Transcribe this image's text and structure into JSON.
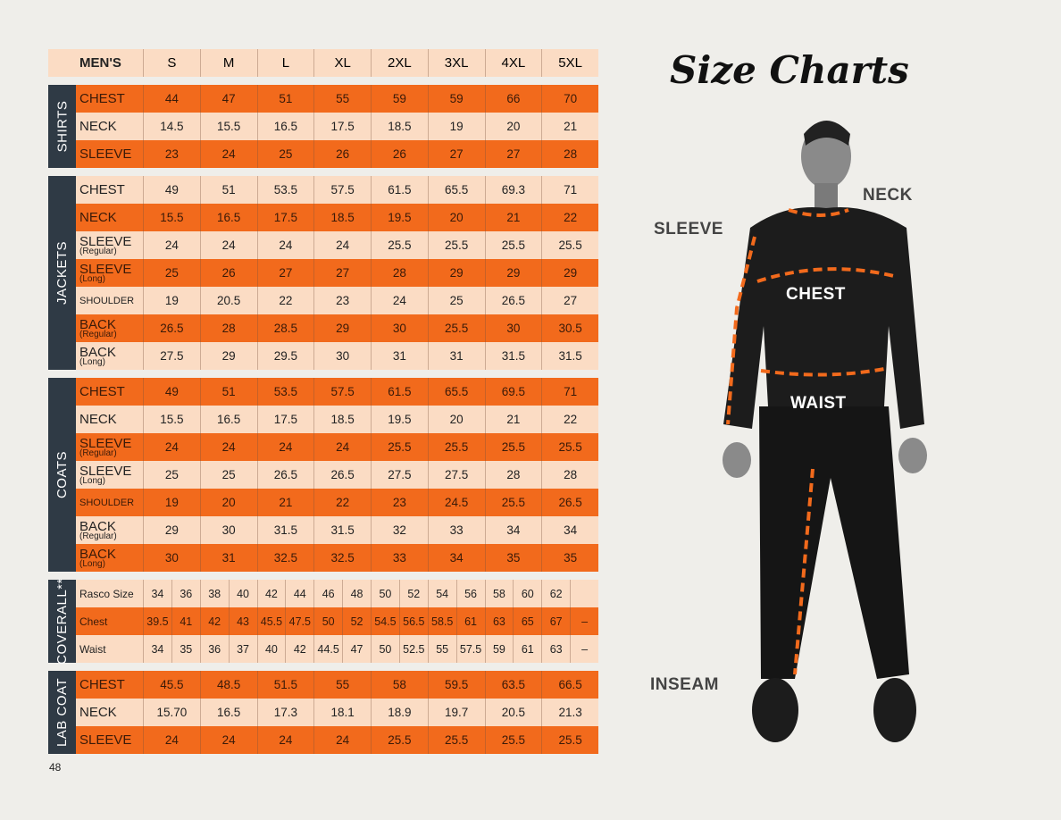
{
  "title": "Size Charts",
  "page_number": "48",
  "colors": {
    "orange": "#f26a1c",
    "peach": "#fbdcc4",
    "section_tag": "#2f3a45"
  },
  "header": {
    "label": "MEN'S",
    "sizes": [
      "S",
      "M",
      "L",
      "XL",
      "2XL",
      "3XL",
      "4XL",
      "5XL"
    ]
  },
  "sections": [
    {
      "name": "SHIRTS",
      "rows": [
        {
          "label": "CHEST",
          "color": "orange",
          "values": [
            "44",
            "47",
            "51",
            "55",
            "59",
            "59",
            "66",
            "70"
          ]
        },
        {
          "label": "NECK",
          "color": "peach",
          "values": [
            "14.5",
            "15.5",
            "16.5",
            "17.5",
            "18.5",
            "19",
            "20",
            "21"
          ]
        },
        {
          "label": "SLEEVE",
          "color": "orange",
          "values": [
            "23",
            "24",
            "25",
            "26",
            "26",
            "27",
            "27",
            "28"
          ]
        }
      ]
    },
    {
      "name": "JACKETS",
      "rows": [
        {
          "label": "CHEST",
          "color": "peach",
          "values": [
            "49",
            "51",
            "53.5",
            "57.5",
            "61.5",
            "65.5",
            "69.3",
            "71"
          ]
        },
        {
          "label": "NECK",
          "color": "orange",
          "values": [
            "15.5",
            "16.5",
            "17.5",
            "18.5",
            "19.5",
            "20",
            "21",
            "22"
          ]
        },
        {
          "label": "SLEEVE",
          "sub": "(Regular)",
          "color": "peach",
          "values": [
            "24",
            "24",
            "24",
            "24",
            "25.5",
            "25.5",
            "25.5",
            "25.5"
          ]
        },
        {
          "label": "SLEEVE",
          "sub": "(Long)",
          "color": "orange",
          "values": [
            "25",
            "26",
            "27",
            "27",
            "28",
            "29",
            "29",
            "29"
          ]
        },
        {
          "label": "SHOULDER",
          "small": true,
          "color": "peach",
          "values": [
            "19",
            "20.5",
            "22",
            "23",
            "24",
            "25",
            "26.5",
            "27"
          ]
        },
        {
          "label": "BACK",
          "sub": "(Regular)",
          "color": "orange",
          "values": [
            "26.5",
            "28",
            "28.5",
            "29",
            "30",
            "25.5",
            "30",
            "30.5"
          ]
        },
        {
          "label": "BACK",
          "sub": "(Long)",
          "color": "peach",
          "values": [
            "27.5",
            "29",
            "29.5",
            "30",
            "31",
            "31",
            "31.5",
            "31.5"
          ]
        }
      ]
    },
    {
      "name": "COATS",
      "rows": [
        {
          "label": "CHEST",
          "color": "orange",
          "values": [
            "49",
            "51",
            "53.5",
            "57.5",
            "61.5",
            "65.5",
            "69.5",
            "71"
          ]
        },
        {
          "label": "NECK",
          "color": "peach",
          "values": [
            "15.5",
            "16.5",
            "17.5",
            "18.5",
            "19.5",
            "20",
            "21",
            "22"
          ]
        },
        {
          "label": "SLEEVE",
          "sub": "(Regular)",
          "color": "orange",
          "values": [
            "24",
            "24",
            "24",
            "24",
            "25.5",
            "25.5",
            "25.5",
            "25.5"
          ]
        },
        {
          "label": "SLEEVE",
          "sub": "(Long)",
          "color": "peach",
          "values": [
            "25",
            "25",
            "26.5",
            "26.5",
            "27.5",
            "27.5",
            "28",
            "28"
          ]
        },
        {
          "label": "SHOULDER",
          "small": true,
          "color": "orange",
          "values": [
            "19",
            "20",
            "21",
            "22",
            "23",
            "24.5",
            "25.5",
            "26.5"
          ]
        },
        {
          "label": "BACK",
          "sub": "(Regular)",
          "color": "peach",
          "values": [
            "29",
            "30",
            "31.5",
            "31.5",
            "32",
            "33",
            "34",
            "34"
          ]
        },
        {
          "label": "BACK",
          "sub": "(Long)",
          "color": "orange",
          "values": [
            "30",
            "31",
            "32.5",
            "32.5",
            "33",
            "34",
            "35",
            "35"
          ]
        }
      ]
    },
    {
      "name": "COVERALL**",
      "coverall": true,
      "rows": [
        {
          "label": "Rasco Size",
          "color": "peach",
          "values": [
            "34",
            "36",
            "38",
            "40",
            "42",
            "44",
            "46",
            "48",
            "50",
            "52",
            "54",
            "56",
            "58",
            "60",
            "62",
            ""
          ]
        },
        {
          "label": "Chest",
          "color": "orange",
          "values": [
            "39.5",
            "41",
            "42",
            "43",
            "45.5",
            "47.5",
            "50",
            "52",
            "54.5",
            "56.5",
            "58.5",
            "61",
            "63",
            "65",
            "67",
            "–"
          ]
        },
        {
          "label": "Waist",
          "color": "peach",
          "values": [
            "34",
            "35",
            "36",
            "37",
            "40",
            "42",
            "44.5",
            "47",
            "50",
            "52.5",
            "55",
            "57.5",
            "59",
            "61",
            "63",
            "–"
          ]
        }
      ]
    },
    {
      "name": "LAB COAT",
      "rows": [
        {
          "label": "CHEST",
          "color": "orange",
          "values": [
            "45.5",
            "48.5",
            "51.5",
            "55",
            "58",
            "59.5",
            "63.5",
            "66.5"
          ]
        },
        {
          "label": "NECK",
          "color": "peach",
          "values": [
            "15.70",
            "16.5",
            "17.3",
            "18.1",
            "18.9",
            "19.7",
            "20.5",
            "21.3"
          ]
        },
        {
          "label": "SLEEVE",
          "color": "orange",
          "values": [
            "24",
            "24",
            "24",
            "24",
            "25.5",
            "25.5",
            "25.5",
            "25.5"
          ]
        }
      ]
    }
  ],
  "measurement_labels": {
    "neck": "NECK",
    "sleeve": "SLEEVE",
    "chest": "CHEST",
    "waist": "WAIST",
    "inseam": "INSEAM"
  }
}
